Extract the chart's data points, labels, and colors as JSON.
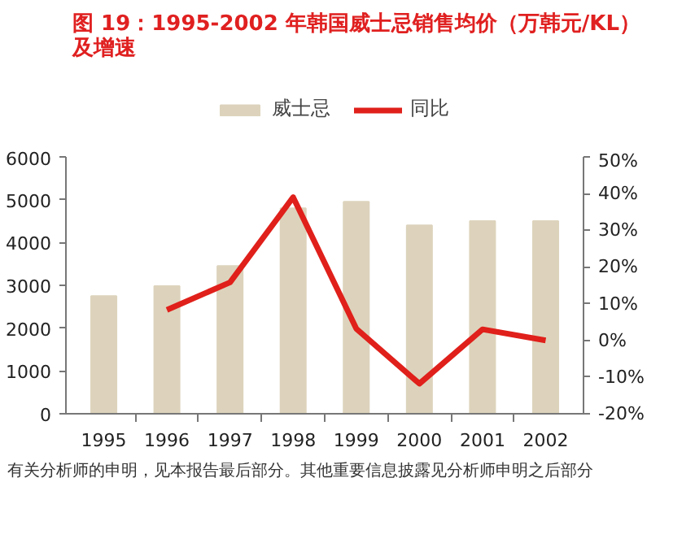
{
  "chart_data": {
    "type": "bar",
    "title": "图 19：1995-2002 年韩国威士忌销售均价（万韩元/KL）及增速",
    "categories": [
      "1995",
      "1996",
      "1997",
      "1998",
      "1999",
      "2000",
      "2001",
      "2002"
    ],
    "series": [
      {
        "name": "威士忌",
        "color": "#ddd3bc",
        "values": [
          2750,
          2980,
          3450,
          4800,
          4950,
          4400,
          4500,
          4500
        ]
      },
      {
        "name": "同比",
        "type": "line",
        "axis": "y2",
        "color": "#e0201b",
        "values": [
          null,
          8.3,
          15.8,
          39,
          3.2,
          -11.8,
          3,
          0
        ]
      }
    ],
    "ylim": [
      0,
      6000
    ],
    "yticks": [
      0,
      1000,
      2000,
      3000,
      4000,
      5000,
      6000
    ],
    "y2lim": [
      -20,
      50
    ],
    "y2ticks": [
      {
        "value": -20,
        "label": "-20%"
      },
      {
        "value": -10,
        "label": "-10%"
      },
      {
        "value": 0,
        "label": "0%"
      },
      {
        "value": 10,
        "label": "10%"
      },
      {
        "value": 20,
        "label": "20%"
      },
      {
        "value": 30,
        "label": "30%"
      },
      {
        "value": 40,
        "label": "40%"
      },
      {
        "value": 50,
        "label": "50%"
      }
    ],
    "grid": false,
    "legend": "top",
    "marker": "none",
    "line_style": "solid",
    "annotations": [
      "有关分析师的申明，见本报告最后部分。其他重要信息披露见分析师申明之后部分"
    ]
  }
}
